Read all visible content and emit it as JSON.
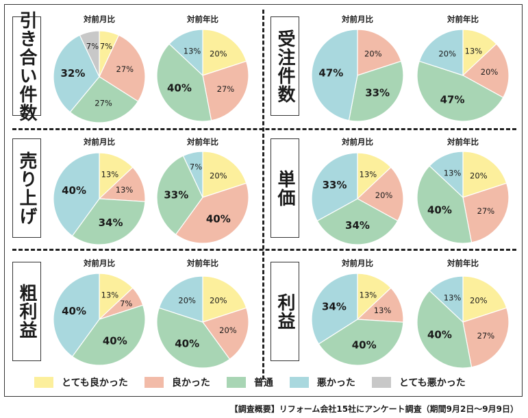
{
  "legend": [
    {
      "key": "very_good",
      "label": "とても良かった",
      "color": "#fcef9c"
    },
    {
      "key": "good",
      "label": "良かった",
      "color": "#f2bba8"
    },
    {
      "key": "normal",
      "label": "普通",
      "color": "#a8d5b4"
    },
    {
      "key": "bad",
      "label": "悪かった",
      "color": "#a9d8de"
    },
    {
      "key": "very_bad",
      "label": "とても悪かった",
      "color": "#c8c8c8"
    }
  ],
  "footnote": "【調査概要】リフォーム会社15社にアンケート調査（期間9月2日〜9月9日）",
  "chart_data": [
    {
      "type": "pie",
      "panel": "引き合い件数",
      "title": "対前月比",
      "slices": [
        {
          "key": "very_good",
          "value": 7
        },
        {
          "key": "good",
          "value": 27
        },
        {
          "key": "normal",
          "value": 27
        },
        {
          "key": "bad",
          "value": 32
        },
        {
          "key": "very_bad",
          "value": 7
        }
      ]
    },
    {
      "type": "pie",
      "panel": "引き合い件数",
      "title": "対前年比",
      "slices": [
        {
          "key": "very_good",
          "value": 20
        },
        {
          "key": "good",
          "value": 27
        },
        {
          "key": "normal",
          "value": 40
        },
        {
          "key": "bad",
          "value": 13
        }
      ]
    },
    {
      "type": "pie",
      "panel": "受注件数",
      "title": "対前月比",
      "slices": [
        {
          "key": "good",
          "value": 20
        },
        {
          "key": "normal",
          "value": 33
        },
        {
          "key": "bad",
          "value": 47
        }
      ]
    },
    {
      "type": "pie",
      "panel": "受注件数",
      "title": "対前年比",
      "slices": [
        {
          "key": "very_good",
          "value": 13
        },
        {
          "key": "good",
          "value": 20
        },
        {
          "key": "normal",
          "value": 47
        },
        {
          "key": "bad",
          "value": 20
        }
      ]
    },
    {
      "type": "pie",
      "panel": "売り上げ",
      "title": "対前月比",
      "slices": [
        {
          "key": "very_good",
          "value": 13
        },
        {
          "key": "good",
          "value": 13
        },
        {
          "key": "normal",
          "value": 34
        },
        {
          "key": "bad",
          "value": 40
        }
      ]
    },
    {
      "type": "pie",
      "panel": "売り上げ",
      "title": "対前年比",
      "slices": [
        {
          "key": "very_good",
          "value": 20
        },
        {
          "key": "good",
          "value": 40
        },
        {
          "key": "normal",
          "value": 33
        },
        {
          "key": "bad",
          "value": 7
        }
      ]
    },
    {
      "type": "pie",
      "panel": "単価",
      "title": "対前月比",
      "slices": [
        {
          "key": "very_good",
          "value": 13
        },
        {
          "key": "good",
          "value": 20
        },
        {
          "key": "normal",
          "value": 34
        },
        {
          "key": "bad",
          "value": 33
        }
      ]
    },
    {
      "type": "pie",
      "panel": "単価",
      "title": "対前年比",
      "slices": [
        {
          "key": "very_good",
          "value": 20
        },
        {
          "key": "good",
          "value": 27
        },
        {
          "key": "normal",
          "value": 40
        },
        {
          "key": "bad",
          "value": 13
        }
      ]
    },
    {
      "type": "pie",
      "panel": "粗利益",
      "title": "対前月比",
      "slices": [
        {
          "key": "very_good",
          "value": 13
        },
        {
          "key": "good",
          "value": 7
        },
        {
          "key": "normal",
          "value": 40
        },
        {
          "key": "bad",
          "value": 40
        }
      ]
    },
    {
      "type": "pie",
      "panel": "粗利益",
      "title": "対前年比",
      "slices": [
        {
          "key": "very_good",
          "value": 20
        },
        {
          "key": "good",
          "value": 20
        },
        {
          "key": "normal",
          "value": 40
        },
        {
          "key": "bad",
          "value": 20
        }
      ]
    },
    {
      "type": "pie",
      "panel": "利益",
      "title": "対前月比",
      "slices": [
        {
          "key": "very_good",
          "value": 13
        },
        {
          "key": "good",
          "value": 13
        },
        {
          "key": "normal",
          "value": 40
        },
        {
          "key": "bad",
          "value": 34
        }
      ]
    },
    {
      "type": "pie",
      "panel": "利益",
      "title": "対前年比",
      "slices": [
        {
          "key": "very_good",
          "value": 20
        },
        {
          "key": "good",
          "value": 27
        },
        {
          "key": "normal",
          "value": 40
        },
        {
          "key": "bad",
          "value": 13
        }
      ]
    }
  ]
}
